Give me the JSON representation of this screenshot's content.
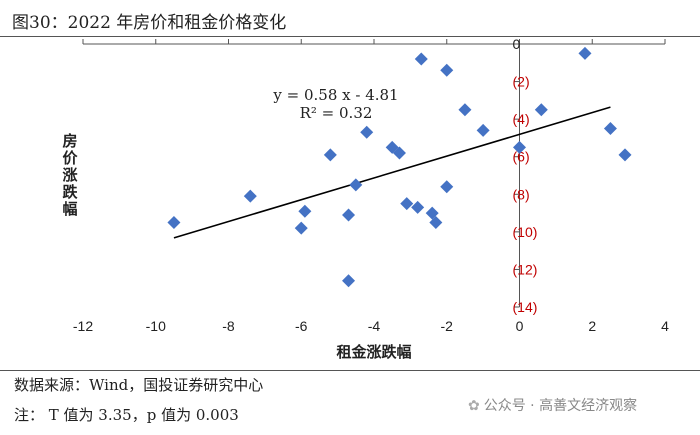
{
  "header": {
    "title": "图30：2022 年房价和租金价格变化"
  },
  "chart_data": {
    "type": "scatter",
    "title": "",
    "xlabel": "租金涨跌幅",
    "ylabel": "房价涨跌幅",
    "xlim": [
      -12,
      4
    ],
    "ylim": [
      -14,
      0
    ],
    "x_ticks": [
      -12,
      -10,
      -8,
      -6,
      -4,
      -2,
      0,
      2,
      4
    ],
    "x_tick_labels": [
      "-12",
      "-10",
      "-8",
      "-6",
      "-4",
      "-2",
      "0",
      "2",
      "4"
    ],
    "y_ticks": [
      0,
      -2,
      -4,
      -6,
      -8,
      -10,
      -12,
      -14
    ],
    "y_tick_labels": [
      "0",
      "(2)",
      "(4)",
      "(6)",
      "(8)",
      "(10)",
      "(12)",
      "(14)"
    ],
    "y_tick_color": "#c00000",
    "marker_color": "#4472c4",
    "trendline": {
      "slope": 0.58,
      "intercept": -4.81,
      "x_range": [
        -9.5,
        2.5
      ]
    },
    "annotations": [
      "y = 0.58 x - 4.81",
      "R² = 0.32"
    ],
    "grid": false,
    "points": [
      {
        "x": -9.5,
        "y": -9.5
      },
      {
        "x": -7.4,
        "y": -8.1
      },
      {
        "x": -6.0,
        "y": -9.8
      },
      {
        "x": -5.9,
        "y": -8.9
      },
      {
        "x": -5.2,
        "y": -5.9
      },
      {
        "x": -4.7,
        "y": -9.1
      },
      {
        "x": -4.5,
        "y": -7.5
      },
      {
        "x": -4.2,
        "y": -4.7
      },
      {
        "x": -4.7,
        "y": -12.6
      },
      {
        "x": -3.5,
        "y": -5.5
      },
      {
        "x": -3.3,
        "y": -5.8
      },
      {
        "x": -3.1,
        "y": -8.5
      },
      {
        "x": -2.8,
        "y": -8.7
      },
      {
        "x": -2.7,
        "y": -0.8
      },
      {
        "x": -2.4,
        "y": -9.0
      },
      {
        "x": -2.3,
        "y": -9.5
      },
      {
        "x": -2.0,
        "y": -1.4
      },
      {
        "x": -2.0,
        "y": -7.6
      },
      {
        "x": -1.5,
        "y": -3.5
      },
      {
        "x": -1.0,
        "y": -4.6
      },
      {
        "x": 0.0,
        "y": -5.5
      },
      {
        "x": 0.6,
        "y": -3.5
      },
      {
        "x": 1.8,
        "y": -0.5
      },
      {
        "x": 2.5,
        "y": -4.5
      },
      {
        "x": 2.9,
        "y": -5.9
      }
    ]
  },
  "footer": {
    "source": "数据来源：Wind，国投证券研究中心",
    "note": "注：  T 值为 3.35，p 值为 0.003",
    "watermark": "公众号 · 高善文经济观察"
  }
}
